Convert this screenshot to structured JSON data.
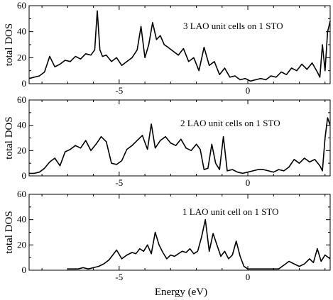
{
  "xlabel": "Energy  (eV)",
  "chart_data": [
    {
      "type": "line",
      "title": "3 LAO unit cells on 1 STO",
      "ylabel": "total DOS",
      "xlim": [
        -8.5,
        3.2
      ],
      "ylim": [
        0,
        60
      ],
      "xticks": [
        -5,
        0
      ],
      "yticks": [
        0,
        20,
        40,
        60
      ],
      "grid": false,
      "x": [
        -8.5,
        -8.3,
        -8.1,
        -7.9,
        -7.7,
        -7.5,
        -7.3,
        -7.1,
        -6.9,
        -6.7,
        -6.5,
        -6.3,
        -6.1,
        -5.95,
        -5.85,
        -5.75,
        -5.65,
        -5.5,
        -5.3,
        -5.1,
        -4.9,
        -4.7,
        -4.5,
        -4.3,
        -4.15,
        -4.0,
        -3.85,
        -3.7,
        -3.55,
        -3.4,
        -3.25,
        -3.1,
        -2.9,
        -2.7,
        -2.5,
        -2.3,
        -2.1,
        -1.9,
        -1.7,
        -1.5,
        -1.3,
        -1.1,
        -0.9,
        -0.7,
        -0.5,
        -0.3,
        -0.1,
        0.1,
        0.3,
        0.5,
        0.7,
        0.9,
        1.1,
        1.3,
        1.5,
        1.7,
        1.9,
        2.1,
        2.3,
        2.5,
        2.7,
        2.8,
        2.9,
        3.0,
        3.1,
        3.2
      ],
      "y": [
        4,
        5,
        6,
        9,
        21,
        13,
        15,
        18,
        17,
        21,
        19,
        23,
        22,
        26,
        56,
        26,
        21,
        22,
        17,
        20,
        14,
        17,
        20,
        26,
        44,
        20,
        30,
        47,
        34,
        37,
        30,
        28,
        25,
        22,
        27,
        17,
        20,
        10,
        28,
        14,
        17,
        7,
        12,
        5,
        6,
        3,
        4,
        2,
        3,
        4,
        3,
        6,
        5,
        9,
        7,
        12,
        10,
        15,
        11,
        16,
        9,
        5,
        30,
        10,
        40,
        48
      ]
    },
    {
      "type": "line",
      "title": "2 LAO unit cells on 1 STO",
      "ylabel": "total DOS",
      "xlim": [
        -8.5,
        3.2
      ],
      "ylim": [
        0,
        60
      ],
      "xticks": [
        -5,
        0
      ],
      "yticks": [
        0,
        20,
        40,
        60
      ],
      "grid": false,
      "x": [
        -8.5,
        -8.3,
        -8.1,
        -7.9,
        -7.7,
        -7.5,
        -7.3,
        -7.1,
        -6.9,
        -6.7,
        -6.5,
        -6.3,
        -6.1,
        -5.9,
        -5.7,
        -5.5,
        -5.3,
        -5.1,
        -4.9,
        -4.7,
        -4.5,
        -4.3,
        -4.1,
        -3.9,
        -3.75,
        -3.6,
        -3.4,
        -3.2,
        -3.0,
        -2.8,
        -2.6,
        -2.4,
        -2.2,
        -2.0,
        -1.85,
        -1.7,
        -1.55,
        -1.4,
        -1.25,
        -1.1,
        -0.95,
        -0.8,
        -0.6,
        -0.4,
        -0.2,
        0.0,
        0.2,
        0.4,
        0.6,
        0.8,
        1.0,
        1.2,
        1.4,
        1.6,
        1.8,
        2.0,
        2.2,
        2.4,
        2.6,
        2.8,
        2.9,
        3.0,
        3.1,
        3.2
      ],
      "y": [
        2,
        2,
        3,
        6,
        11,
        14,
        8,
        19,
        21,
        24,
        22,
        28,
        20,
        25,
        31,
        27,
        10,
        9,
        12,
        21,
        24,
        28,
        32,
        21,
        41,
        22,
        28,
        31,
        26,
        24,
        29,
        22,
        20,
        25,
        21,
        5,
        6,
        25,
        10,
        5,
        31,
        4,
        5,
        3,
        2,
        3,
        4,
        5,
        5,
        4,
        3,
        5,
        4,
        7,
        13,
        10,
        14,
        11,
        13,
        8,
        4,
        30,
        46,
        40
      ]
    },
    {
      "type": "line",
      "title": "1 LAO unit cell on 1 STO",
      "ylabel": "total DOS",
      "xlim": [
        -8.5,
        3.2
      ],
      "ylim": [
        0,
        60
      ],
      "xticks": [
        -5,
        0
      ],
      "yticks": [
        0,
        20,
        40,
        60
      ],
      "grid": false,
      "x": [
        -7.0,
        -6.8,
        -6.6,
        -6.4,
        -6.2,
        -6.0,
        -5.8,
        -5.6,
        -5.4,
        -5.25,
        -5.1,
        -4.9,
        -4.7,
        -4.5,
        -4.35,
        -4.2,
        -4.05,
        -3.9,
        -3.75,
        -3.6,
        -3.45,
        -3.3,
        -3.15,
        -3.0,
        -2.85,
        -2.7,
        -2.55,
        -2.4,
        -2.25,
        -2.1,
        -1.95,
        -1.8,
        -1.65,
        -1.5,
        -1.35,
        -1.2,
        -1.05,
        -0.9,
        -0.75,
        -0.6,
        -0.45,
        -0.3,
        -0.15,
        0.0,
        0.3,
        0.6,
        0.9,
        1.2,
        1.4,
        1.6,
        1.8,
        2.0,
        2.2,
        2.4,
        2.55,
        2.7,
        2.85,
        3.0,
        3.2
      ],
      "y": [
        1,
        1,
        1,
        2,
        1,
        2,
        3,
        5,
        8,
        12,
        16,
        9,
        12,
        14,
        13,
        17,
        15,
        20,
        13,
        30,
        20,
        14,
        9,
        12,
        11,
        13,
        15,
        14,
        17,
        13,
        15,
        26,
        40,
        15,
        29,
        20,
        11,
        15,
        9,
        12,
        23,
        11,
        3,
        1,
        1,
        1,
        1,
        1,
        4,
        7,
        5,
        3,
        5,
        9,
        6,
        17,
        7,
        12,
        9
      ]
    }
  ]
}
